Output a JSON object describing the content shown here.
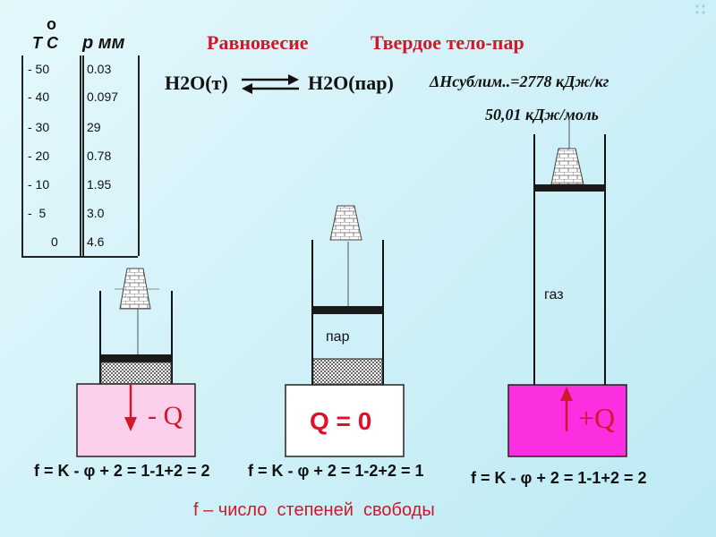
{
  "table": {
    "header_t": "T C",
    "header_degree": "o",
    "header_p": "p мм",
    "temps": [
      "- 50",
      "- 40",
      "- 30",
      "- 20",
      "- 10",
      "-  5",
      "0"
    ],
    "pressures": [
      "0.03",
      "0.097",
      "29",
      "0.78",
      "1.95",
      "3.0",
      "4.6"
    ]
  },
  "title": {
    "part1": "Равновесие",
    "part2": "Твердое тело-пар"
  },
  "equation": {
    "left": "H2O(т)",
    "right": "H2O(пар)",
    "enthalpy_1": "ΔHсублим..=2778 кДж/кг",
    "enthalpy_2": "50,01 кДж/моль"
  },
  "cylinders": {
    "left_heat": "- Q",
    "middle_label": "пар",
    "middle_heat": "Q = 0",
    "right_label": "газ",
    "right_heat": "+Q"
  },
  "formulas": {
    "left": "f = K - φ + 2 = 1-1+2 = 2",
    "middle": "f = K - φ + 2 = 1-2+2 = 1",
    "right": "f = K - φ + 2 = 1-1+2 = 2"
  },
  "footnote": "f – число  степеней  свободы",
  "colors": {
    "title": "#d0182a",
    "cold_bath": "#fcd0ec",
    "hot_bath": "#fb2ee0",
    "arrow": "#d0182a",
    "piston": "#1a1a1a"
  }
}
